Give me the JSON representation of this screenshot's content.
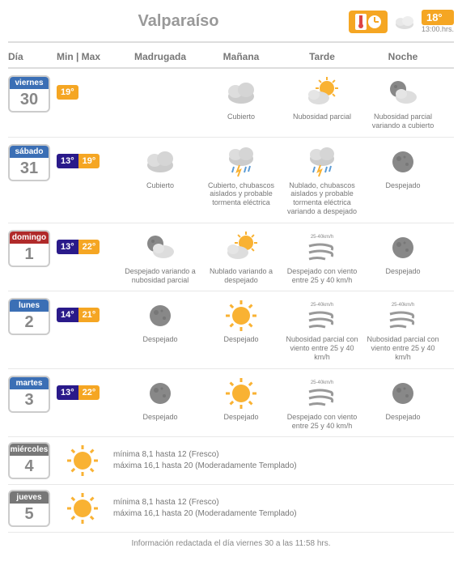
{
  "city": "Valparaíso",
  "current": {
    "temp": "18°",
    "time": "13:00.hrs."
  },
  "columns": {
    "dia": "Día",
    "minmax": "Min | Max",
    "q1": "Madrugada",
    "q2": "Mañana",
    "q3": "Tarde",
    "q4": "Noche"
  },
  "colors": {
    "viernes": "#3b6fb5",
    "sabado": "#3b6fb5",
    "domingo": "#b02a2a",
    "lunes": "#3b6fb5",
    "martes": "#3b6fb5",
    "miercoles": "#777",
    "jueves": "#777",
    "min_bg": "#2a1a8a",
    "max_bg": "#f5a623"
  },
  "days": [
    {
      "name": "viernes",
      "num": "30",
      "min": "",
      "max": "19°",
      "q": [
        {
          "icon": "",
          "desc": ""
        },
        {
          "icon": "cloud",
          "desc": "Cubierto"
        },
        {
          "icon": "suncloud",
          "desc": "Nubosidad parcial"
        },
        {
          "icon": "mooncloud",
          "desc": "Nubosidad parcial variando a cubierto"
        }
      ]
    },
    {
      "name": "sábado",
      "num": "31",
      "min": "13°",
      "max": "19°",
      "q": [
        {
          "icon": "cloud",
          "desc": "Cubierto"
        },
        {
          "icon": "storm",
          "desc": "Cubierto, chubascos aislados y probable tormenta eléctrica"
        },
        {
          "icon": "storm",
          "desc": "Nublado, chubascos aislados y probable tormenta eléctrica variando a despejado"
        },
        {
          "icon": "moon",
          "desc": "Despejado"
        }
      ]
    },
    {
      "name": "domingo",
      "num": "1",
      "min": "13°",
      "max": "22°",
      "q": [
        {
          "icon": "mooncloud",
          "desc": "Despejado variando a nubosidad parcial"
        },
        {
          "icon": "suncloud",
          "desc": "Nublado variando a despejado"
        },
        {
          "icon": "wind",
          "desc": "Despejado con viento entre 25 y 40 km/h"
        },
        {
          "icon": "moon",
          "desc": "Despejado"
        }
      ]
    },
    {
      "name": "lunes",
      "num": "2",
      "min": "14°",
      "max": "21°",
      "q": [
        {
          "icon": "moon",
          "desc": "Despejado"
        },
        {
          "icon": "sun",
          "desc": "Despejado"
        },
        {
          "icon": "wind",
          "desc": "Nubosidad parcial con viento entre 25 y 40 km/h"
        },
        {
          "icon": "wind",
          "desc": "Nubosidad parcial con viento entre 25 y 40 km/h"
        }
      ]
    },
    {
      "name": "martes",
      "num": "3",
      "min": "13°",
      "max": "22°",
      "q": [
        {
          "icon": "moon",
          "desc": "Despejado"
        },
        {
          "icon": "sun",
          "desc": "Despejado"
        },
        {
          "icon": "wind",
          "desc": "Despejado con viento entre 25 y 40 km/h"
        },
        {
          "icon": "moon",
          "desc": "Despejado"
        }
      ]
    }
  ],
  "extended": [
    {
      "name": "miércoles",
      "num": "4",
      "icon": "sun",
      "line1": "mínima 8,1 hasta 12 (Fresco)",
      "line2": "máxima 16,1 hasta 20 (Moderadamente Templado)"
    },
    {
      "name": "jueves",
      "num": "5",
      "icon": "sun",
      "line1": "mínima 8,1 hasta 12 (Fresco)",
      "line2": "máxima 16,1 hasta 20 (Moderadamente Templado)"
    }
  ],
  "footer": "Información redactada el día viernes 30 a las 11:58 hrs."
}
